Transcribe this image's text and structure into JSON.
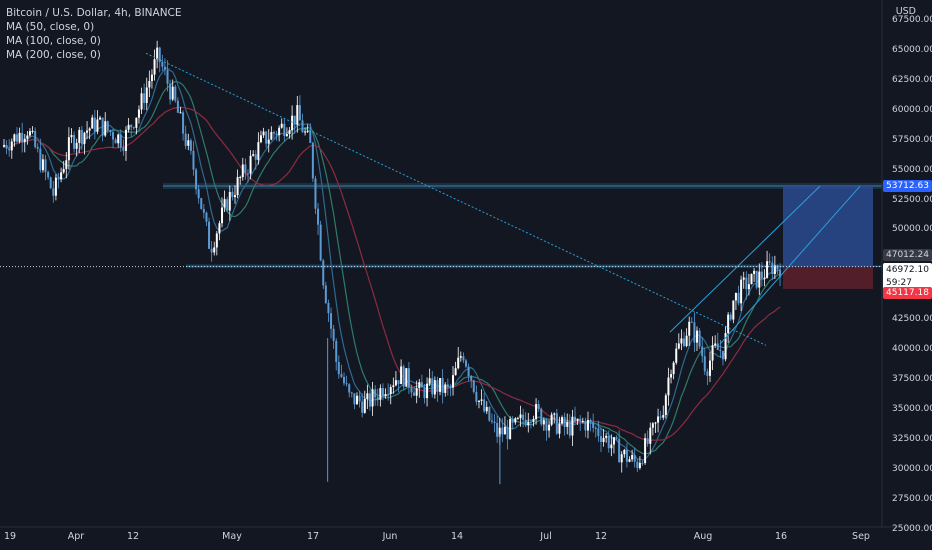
{
  "legend": {
    "symbol": "Bitcoin / U.S. Dollar, 4h, BINANCE",
    "ma50": "MA (50, close, 0)",
    "ma100": "MA (100, close, 0)",
    "ma200": "MA (200, close, 0)"
  },
  "axis": {
    "currency": "USD"
  },
  "price_tags": {
    "target": "53712.63",
    "high": "47012.24",
    "last": "46972.10",
    "countdown": "59:27",
    "stop": "45117.18"
  },
  "colors": {
    "background": "#131722",
    "candle": "#ffffff",
    "candle_alt": "#5b9bd5",
    "ma50": "#2f7b6b",
    "ma100": "#2e6a8e",
    "ma200": "#8e2b3f",
    "trendline": "#2a9fd8",
    "target_zone": "#2b4b8f",
    "stop_zone": "#5a1f2a"
  },
  "chart_data": {
    "type": "candlestick",
    "symbol": "BTCUSD",
    "interval": "4h",
    "exchange": "BINANCE",
    "y_range": [
      25000,
      67500
    ],
    "y_ticks": [
      "67500.00",
      "65000.00",
      "62500.00",
      "60000.00",
      "57500.00",
      "55000.00",
      "52500.00",
      "50000.00",
      "47500.00",
      "45000.00",
      "42500.00",
      "40000.00",
      "37500.00",
      "35000.00",
      "32500.00",
      "30000.00",
      "27500.00",
      "25000.00"
    ],
    "x_ticks": [
      "19",
      "Apr",
      "12",
      "May",
      "17",
      "Jun",
      "14",
      "Jul",
      "12",
      "Aug",
      "16",
      "Sep"
    ],
    "price_path": [
      [
        0,
        57000
      ],
      [
        0.03,
        58500
      ],
      [
        0.06,
        53000
      ],
      [
        0.08,
        57500
      ],
      [
        0.11,
        59000
      ],
      [
        0.14,
        57500
      ],
      [
        0.16,
        60500
      ],
      [
        0.18,
        64600
      ],
      [
        0.2,
        60500
      ],
      [
        0.22,
        55500
      ],
      [
        0.24,
        48500
      ],
      [
        0.26,
        52500
      ],
      [
        0.28,
        55000
      ],
      [
        0.3,
        57500
      ],
      [
        0.32,
        58500
      ],
      [
        0.34,
        59600
      ],
      [
        0.355,
        57000
      ],
      [
        0.37,
        46000
      ],
      [
        0.385,
        39000
      ],
      [
        0.4,
        36000
      ],
      [
        0.42,
        35500
      ],
      [
        0.44,
        37000
      ],
      [
        0.46,
        38000
      ],
      [
        0.48,
        36500
      ],
      [
        0.5,
        37000
      ],
      [
        0.515,
        36500
      ],
      [
        0.53,
        40000
      ],
      [
        0.55,
        35500
      ],
      [
        0.57,
        33000
      ],
      [
        0.59,
        33500
      ],
      [
        0.61,
        35000
      ],
      [
        0.63,
        34000
      ],
      [
        0.65,
        33500
      ],
      [
        0.67,
        34000
      ],
      [
        0.69,
        33000
      ],
      [
        0.71,
        31500
      ],
      [
        0.73,
        30500
      ],
      [
        0.745,
        32500
      ],
      [
        0.76,
        35000
      ],
      [
        0.77,
        39000
      ],
      [
        0.78,
        40500
      ],
      [
        0.79,
        42000
      ],
      [
        0.8,
        41000
      ],
      [
        0.81,
        38500
      ],
      [
        0.82,
        40000
      ],
      [
        0.83,
        40000
      ],
      [
        0.84,
        44000
      ],
      [
        0.855,
        45500
      ],
      [
        0.87,
        46000
      ],
      [
        0.885,
        47000
      ],
      [
        0.895,
        46972
      ]
    ],
    "trade_setup": {
      "entry": 46972.1,
      "target": 53712.63,
      "stop": 45117.18
    },
    "horizontal_levels": [
      53712.63,
      47012.24
    ]
  }
}
